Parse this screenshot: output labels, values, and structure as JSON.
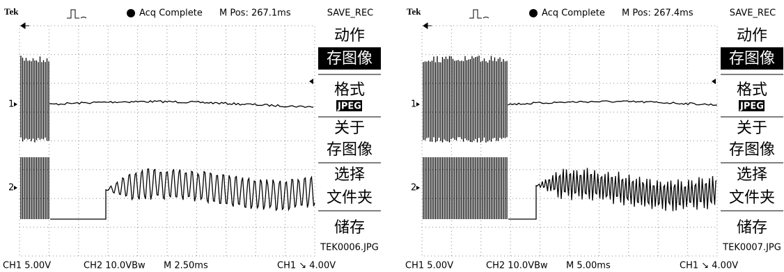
{
  "screens": [
    {
      "header": {
        "brand": "Tek",
        "status": "Acq Complete",
        "position": "M Pos: 267.1ms",
        "menu_title": "SAVE_REC"
      },
      "menu": {
        "action_label": "动作",
        "action_value": "存图像",
        "format_label": "格式",
        "format_value": "JPEG",
        "about": [
          "关于",
          "存图像"
        ],
        "select": [
          "选择",
          "文件夹"
        ],
        "save_label": "储存",
        "save_value": "TEK0006.JPG"
      },
      "channel_markers": [
        "1",
        "2"
      ],
      "footer": {
        "ch1": "CH1  5.00V",
        "ch2": "CH2  10.0VBw",
        "timebase": "M 2.50ms",
        "trigger": "CH1 ↘ 4.00V"
      }
    },
    {
      "header": {
        "brand": "Tek",
        "status": "Acq Complete",
        "position": "M Pos: 267.4ms",
        "menu_title": "SAVE_REC"
      },
      "menu": {
        "action_label": "动作",
        "action_value": "存图像",
        "format_label": "格式",
        "format_value": "JPEG",
        "about": [
          "关于",
          "存图像"
        ],
        "select": [
          "选择",
          "文件夹"
        ],
        "save_label": "储存",
        "save_value": "TEK0007.JPG"
      },
      "channel_markers": [
        "1",
        "2"
      ],
      "footer": {
        "ch1": "CH1  5.00V",
        "ch2": "CH2  10.0VBw",
        "timebase": "M 5.00ms",
        "trigger": "CH1 ↘ 4.00V"
      }
    }
  ]
}
